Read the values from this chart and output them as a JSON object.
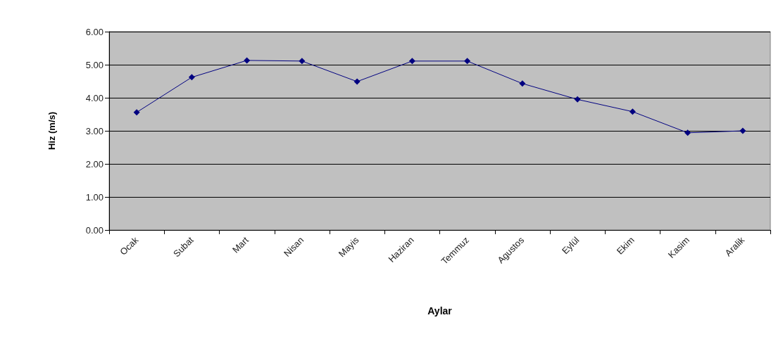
{
  "chart_data": {
    "type": "line",
    "xlabel": "Aylar",
    "ylabel": "Hiz (m/s)",
    "categories": [
      "Ocak",
      "Subat",
      "Mart",
      "Nisan",
      "Mayis",
      "Haziran",
      "Temmuz",
      "Agustos",
      "Eylül",
      "Ekim",
      "Kasim",
      "Aralik"
    ],
    "series": [
      {
        "color": "#000080",
        "values": [
          3.56,
          4.62,
          5.13,
          5.11,
          4.49,
          5.11,
          5.11,
          4.43,
          3.95,
          3.58,
          2.94,
          3.0
        ]
      }
    ],
    "ylim": [
      0,
      6
    ],
    "yticks": [
      {
        "value": 0,
        "label": "0.00"
      },
      {
        "value": 1,
        "label": "1.00"
      },
      {
        "value": 2,
        "label": "2.00"
      },
      {
        "value": 3,
        "label": "3.00"
      },
      {
        "value": 4,
        "label": "4.00"
      },
      {
        "value": 5,
        "label": "5.00"
      },
      {
        "value": 6,
        "label": "6.00"
      }
    ],
    "grid": "y",
    "marker": "diamond",
    "line_style": "solid"
  }
}
